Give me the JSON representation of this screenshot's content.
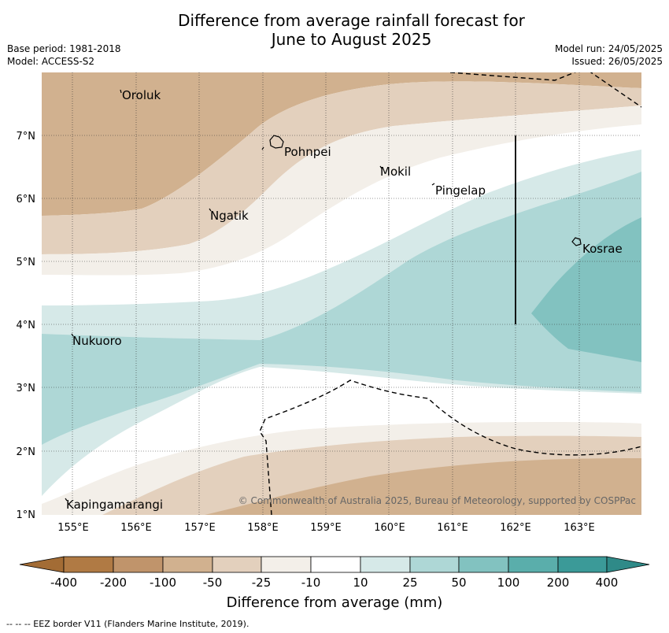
{
  "title_line1": "Difference from average rainfall forecast for",
  "title_line2": "June to August 2025",
  "base_period": "Base period: 1981-2018",
  "model": "Model: ACCESS-S2",
  "model_run": "Model run: 24/05/2025",
  "issued": "Issued: 26/05/2025",
  "copyright": "© Commonwealth of Australia 2025, Bureau of Meteorology, supported by COSPPac",
  "colorbar_title": "Difference from average (mm)",
  "eez_note": "--  --  -- EEZ border V11 (Flanders Marine Institute, 2019).",
  "lon_labels": [
    "155°E",
    "156°E",
    "157°E",
    "158°E",
    "159°E",
    "160°E",
    "161°E",
    "162°E",
    "163°E"
  ],
  "lat_labels": [
    "7°N",
    "6°N",
    "5°N",
    "4°N",
    "3°N",
    "2°N",
    "1°N"
  ],
  "places": {
    "oroluk": "Oroluk",
    "pohnpei": "Pohnpei",
    "mokil": "Mokil",
    "pingelap": "Pingelap",
    "ngatik": "Ngatik",
    "kosrae": "Kosrae",
    "nukuoro": "Nukuoro",
    "kapingamarangi": "Kapingamarangi"
  },
  "legend": {
    "ticks": [
      "-400",
      "-200",
      "-100",
      "-50",
      "-25",
      "-10",
      "10",
      "25",
      "50",
      "100",
      "200",
      "400"
    ],
    "colors": {
      "neg_extend": "#a36c35",
      "c1": "#b07a44",
      "c2": "#c0946b",
      "c3": "#d1b18f",
      "c4": "#e3d0bd",
      "c5": "#f3efe9",
      "c6": "#ffffff",
      "c7": "#d6e9e8",
      "c8": "#aed7d6",
      "c9": "#82c2c0",
      "c10": "#5aaeab",
      "c11": "#3b9a98",
      "pos_extend": "#2f8a88"
    }
  }
}
